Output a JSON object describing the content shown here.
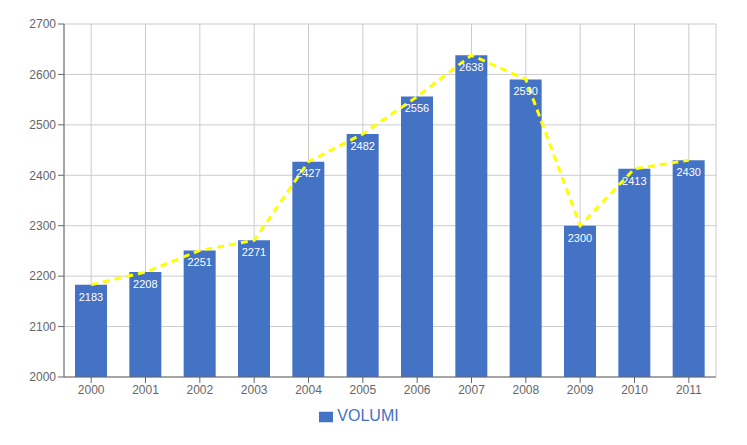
{
  "chart_data": {
    "type": "bar",
    "categories": [
      "2000",
      "2001",
      "2002",
      "2003",
      "2004",
      "2005",
      "2006",
      "2007",
      "2008",
      "2009",
      "2010",
      "2011"
    ],
    "series": [
      {
        "name": "VOLUMI",
        "type": "bar",
        "color": "#4472C4",
        "values": [
          2183,
          2208,
          2251,
          2271,
          2427,
          2482,
          2556,
          2638,
          2590,
          2300,
          2413,
          2430
        ]
      },
      {
        "type": "line",
        "color": "#FFFF00",
        "line_style": "dashed",
        "values": [
          2183,
          2208,
          2251,
          2271,
          2427,
          2482,
          2556,
          2638,
          2590,
          2300,
          2413,
          2430
        ]
      }
    ],
    "ylim": [
      2000,
      2700
    ],
    "yticks": [
      2000,
      2100,
      2200,
      2300,
      2400,
      2500,
      2600,
      2700
    ],
    "grid": true,
    "legend": "bottom",
    "data_labels": true
  }
}
